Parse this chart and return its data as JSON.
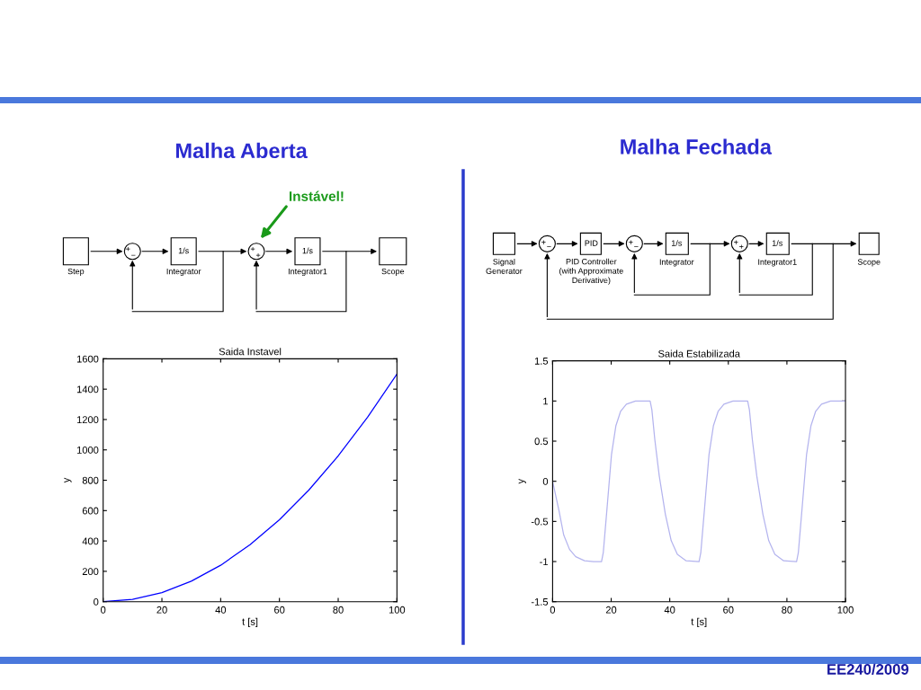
{
  "chart_data": [
    {
      "type": "other",
      "title": "Malha Aberta",
      "annotations": [
        "Instável!",
        "Step",
        "1/s",
        "Integrator",
        "1/s",
        "Integrator1",
        "Scope",
        "+",
        "−",
        "+",
        "+"
      ]
    },
    {
      "type": "line",
      "title": "Saida Instavel",
      "xlabel": "t [s]",
      "ylabel": "y",
      "xlim": [
        0,
        100
      ],
      "ylim": [
        0,
        1600
      ],
      "xticks": [
        0,
        20,
        40,
        60,
        80,
        100
      ],
      "yticks": [
        0,
        200,
        400,
        600,
        800,
        1000,
        1200,
        1400,
        1600
      ],
      "x": [
        0,
        10,
        20,
        30,
        40,
        50,
        60,
        70,
        80,
        90,
        100
      ],
      "series": [
        {
          "color": "#0000ff",
          "values": [
            0,
            15,
            60,
            135,
            240,
            375,
            540,
            735,
            960,
            1215,
            1500
          ]
        }
      ]
    },
    {
      "type": "other",
      "title": "Malha Fechada",
      "annotations": [
        "Signal\nGenerator",
        "PID",
        "PID Controller\n(with Approximate\nDerivative)",
        "1/s",
        "Integrator",
        "1/s",
        "Integrator1",
        "Scope",
        "+",
        "−",
        "+",
        "−",
        "+",
        "+"
      ]
    },
    {
      "type": "line",
      "title": "Saida Estabilizada",
      "xlabel": "t [s]",
      "ylabel": "y",
      "xlim": [
        0,
        100
      ],
      "ylim": [
        -1.5,
        1.5
      ],
      "xticks": [
        0,
        20,
        40,
        60,
        80,
        100
      ],
      "yticks": [
        -1.5,
        -1,
        -0.5,
        0,
        0.5,
        1,
        1.5
      ],
      "x": [
        0,
        2.2,
        3.8,
        5.8,
        7.9,
        10.9,
        14,
        16.7,
        17.3,
        18.6,
        20.1,
        21.6,
        23.2,
        25.2,
        28.3,
        33.3,
        33.9,
        34.9,
        36.4,
        38.5,
        40.5,
        42.6,
        45.6,
        50,
        50.6,
        51.9,
        53.4,
        54.9,
        56.5,
        58.5,
        61.6,
        66.6,
        67.2,
        68.2,
        69.7,
        71.8,
        73.8,
        75.9,
        78.9,
        83.3,
        83.9,
        85.2,
        86.7,
        88.2,
        89.8,
        91.8,
        94.9,
        100
      ],
      "series": [
        {
          "color": "#b4b4ee",
          "values": [
            0,
            -0.37,
            -0.67,
            -0.85,
            -0.94,
            -0.99,
            -1,
            -1,
            -0.89,
            -0.33,
            0.33,
            0.69,
            0.87,
            0.96,
            1,
            1,
            0.89,
            0.52,
            0.07,
            -0.41,
            -0.74,
            -0.91,
            -0.99,
            -1,
            -0.89,
            -0.33,
            0.33,
            0.69,
            0.87,
            0.96,
            1,
            1,
            0.89,
            0.52,
            0.07,
            -0.41,
            -0.74,
            -0.91,
            -0.99,
            -1,
            -0.89,
            -0.33,
            0.33,
            0.69,
            0.87,
            0.96,
            1,
            1
          ]
        }
      ],
      "annotations": [
        "EE240/2009"
      ]
    }
  ]
}
